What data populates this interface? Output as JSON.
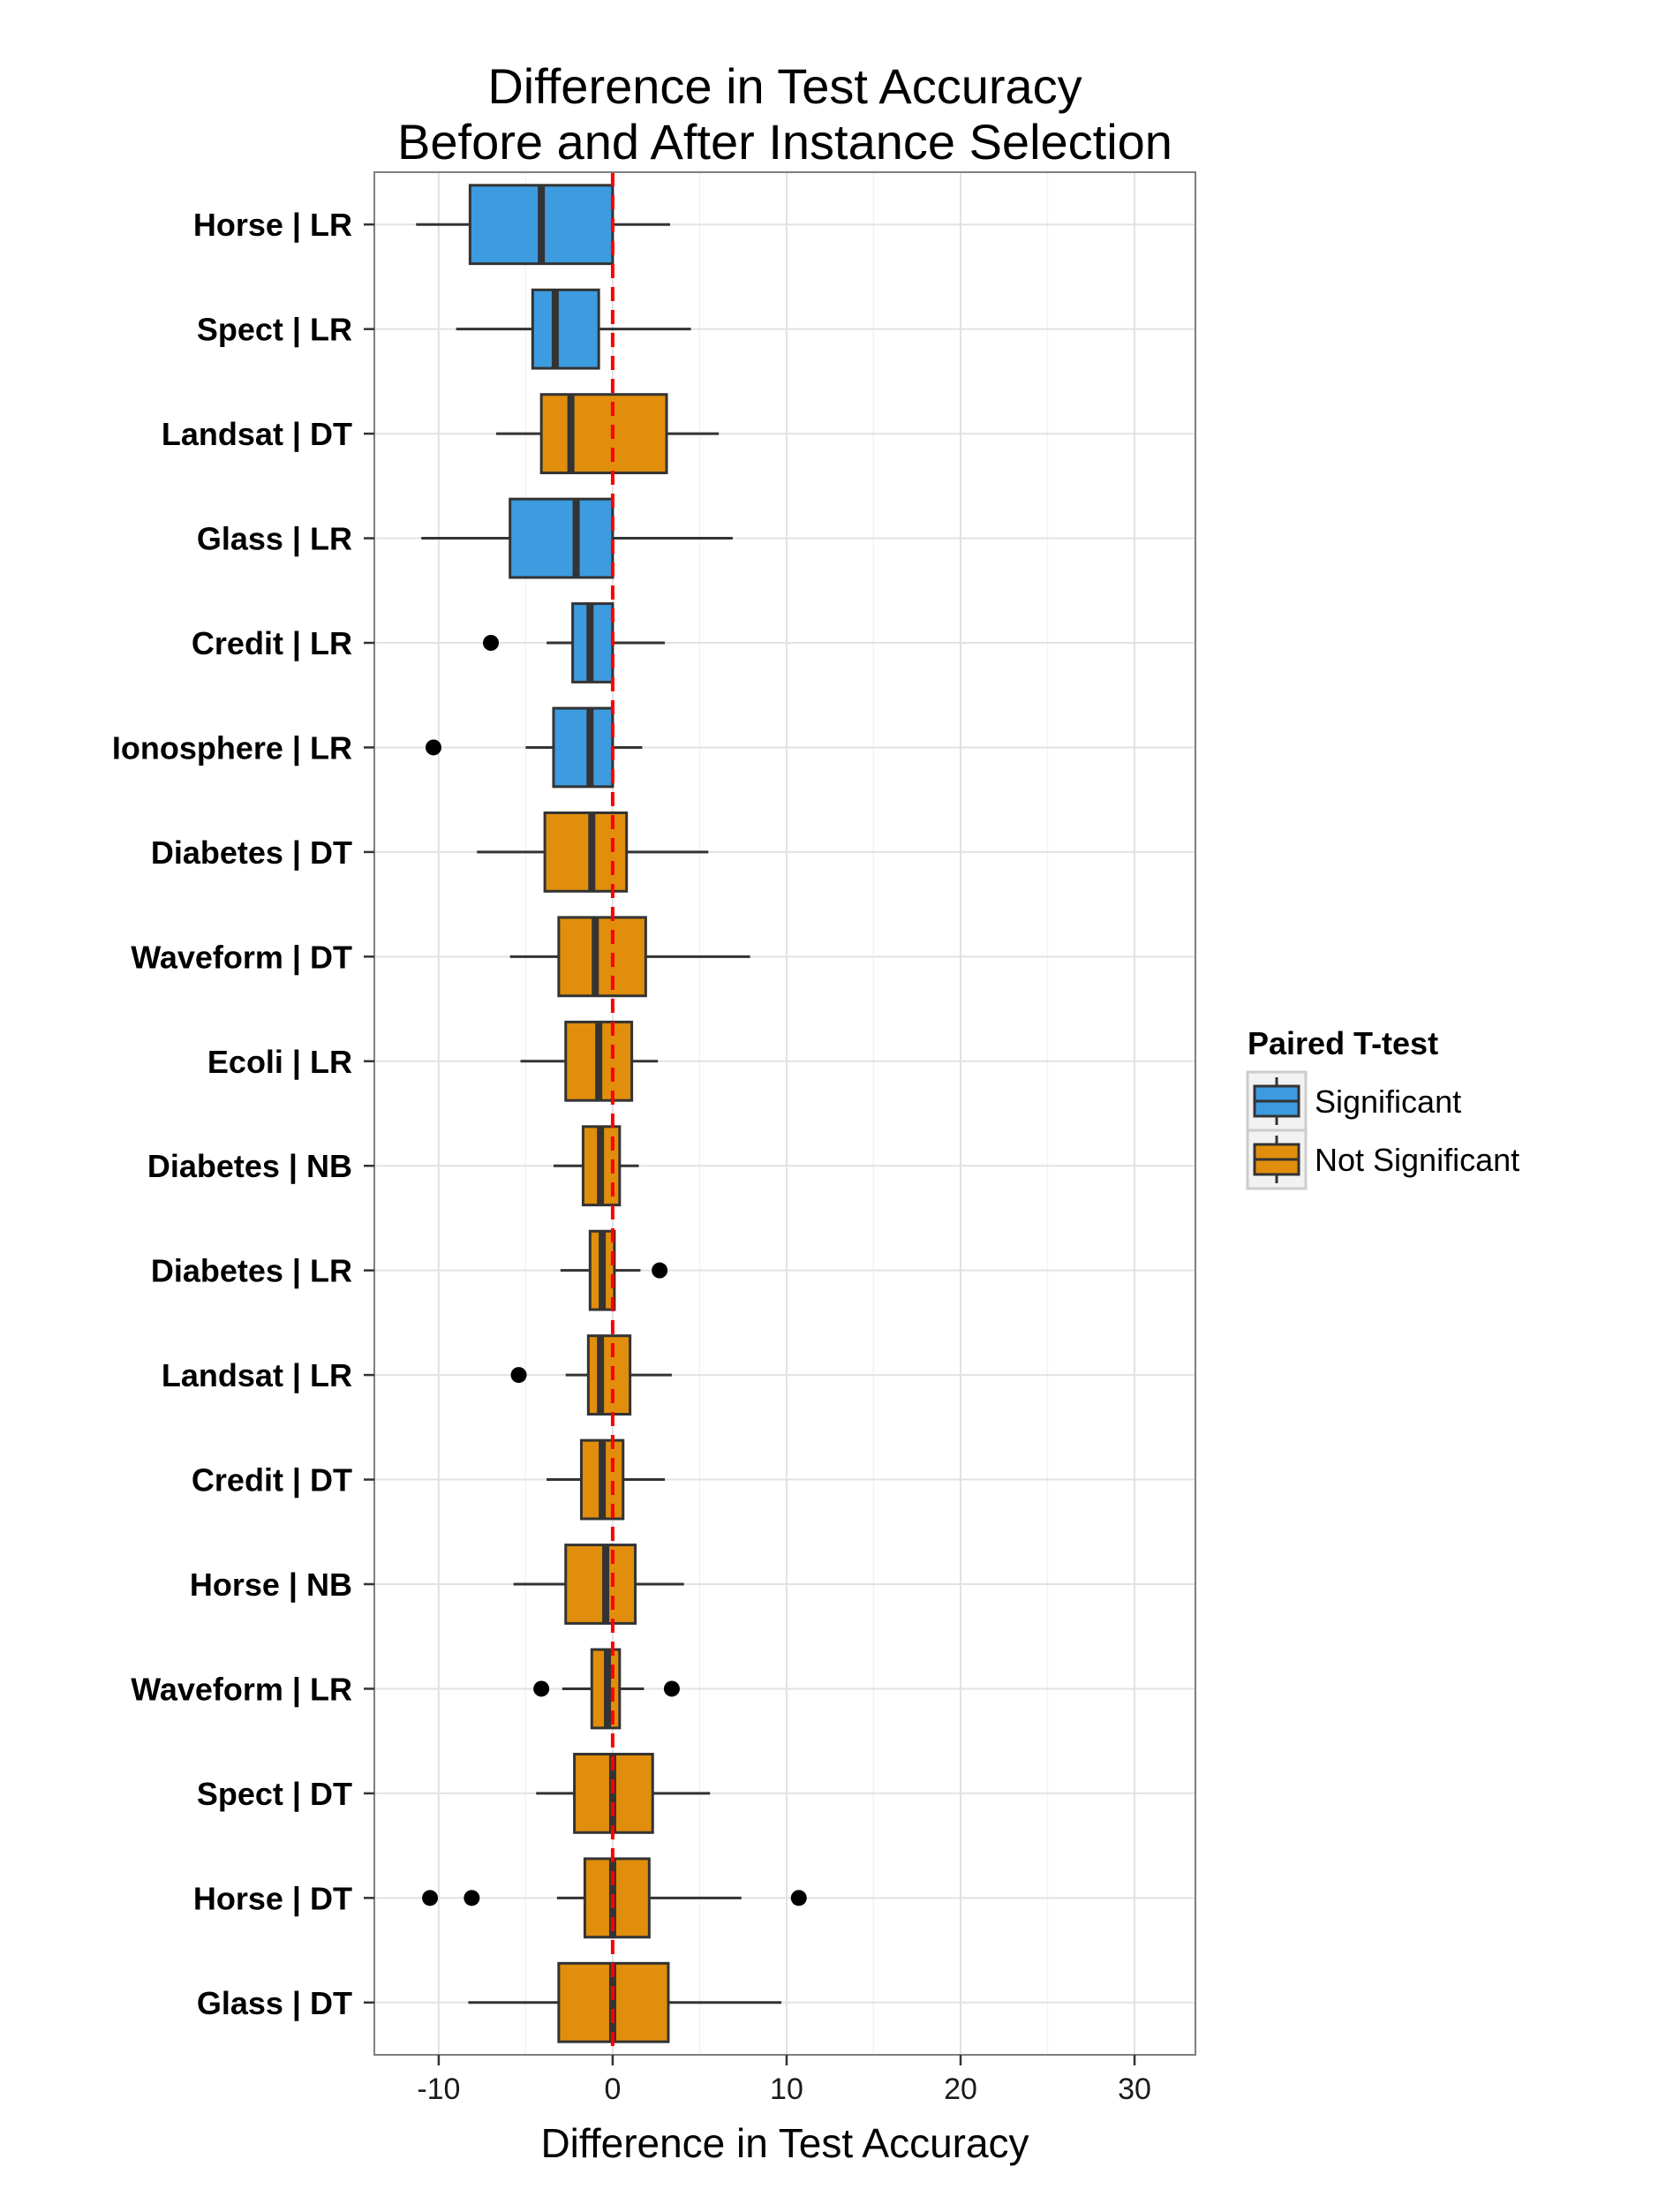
{
  "chart_data": {
    "type": "boxplot",
    "orientation": "horizontal",
    "title": [
      "Difference in Test Accuracy",
      "Before and After Instance Selection"
    ],
    "xlabel": "Difference in Test Accuracy",
    "ylabel": "",
    "xlim": [
      -13.7,
      33.5
    ],
    "xticks": [
      -10,
      0,
      10,
      20,
      30
    ],
    "grid": true,
    "reference_line": {
      "x": 0,
      "color": "#ff0000",
      "style": "dashed"
    },
    "legend": {
      "title": "Paired T-test",
      "placement": "right",
      "entries": [
        {
          "label": "Significant",
          "color": "#3d9be0"
        },
        {
          "label": "Not Significant",
          "color": "#e08e0b"
        }
      ]
    },
    "categories": [
      "Horse | LR",
      "Spect | LR",
      "Landsat | DT",
      "Glass | LR",
      "Credit | LR",
      "Ionosphere | LR",
      "Diabetes | DT",
      "Waveform | DT",
      "Ecoli | LR",
      "Diabetes | NB",
      "Diabetes | LR",
      "Landsat | LR",
      "Credit | DT",
      "Horse | NB",
      "Waveform | LR",
      "Spect | DT",
      "Horse | DT",
      "Glass | DT"
    ],
    "boxes": [
      {
        "label": "Horse | LR",
        "group": "Significant",
        "whisker_low": -11.3,
        "q1": -8.2,
        "median": -4.1,
        "q3": 0.0,
        "whisker_high": 3.3,
        "outliers": []
      },
      {
        "label": "Spect | LR",
        "group": "Significant",
        "whisker_low": -9.0,
        "q1": -4.6,
        "median": -3.3,
        "q3": -0.8,
        "whisker_high": 4.5,
        "outliers": []
      },
      {
        "label": "Landsat | DT",
        "group": "Not Significant",
        "whisker_low": -6.7,
        "q1": -4.1,
        "median": -2.4,
        "q3": 3.1,
        "whisker_high": 6.1,
        "outliers": []
      },
      {
        "label": "Glass | LR",
        "group": "Significant",
        "whisker_low": -11.0,
        "q1": -5.9,
        "median": -2.1,
        "q3": 0.0,
        "whisker_high": 6.9,
        "outliers": []
      },
      {
        "label": "Credit | LR",
        "group": "Significant",
        "whisker_low": -3.8,
        "q1": -2.3,
        "median": -1.3,
        "q3": 0.0,
        "whisker_high": 3.0,
        "outliers": [
          -7.0
        ]
      },
      {
        "label": "Ionosphere | LR",
        "group": "Significant",
        "whisker_low": -5.0,
        "q1": -3.4,
        "median": -1.3,
        "q3": 0.0,
        "whisker_high": 1.7,
        "outliers": [
          -10.3
        ]
      },
      {
        "label": "Diabetes | DT",
        "group": "Not Significant",
        "whisker_low": -7.8,
        "q1": -3.9,
        "median": -1.2,
        "q3": 0.8,
        "whisker_high": 5.5,
        "outliers": []
      },
      {
        "label": "Waveform | DT",
        "group": "Not Significant",
        "whisker_low": -5.9,
        "q1": -3.1,
        "median": -1.0,
        "q3": 1.9,
        "whisker_high": 7.9,
        "outliers": []
      },
      {
        "label": "Ecoli | LR",
        "group": "Not Significant",
        "whisker_low": -5.3,
        "q1": -2.7,
        "median": -0.8,
        "q3": 1.1,
        "whisker_high": 2.6,
        "outliers": []
      },
      {
        "label": "Diabetes | NB",
        "group": "Not Significant",
        "whisker_low": -3.4,
        "q1": -1.7,
        "median": -0.7,
        "q3": 0.4,
        "whisker_high": 1.5,
        "outliers": []
      },
      {
        "label": "Diabetes | LR",
        "group": "Not Significant",
        "whisker_low": -3.0,
        "q1": -1.3,
        "median": -0.6,
        "q3": 0.1,
        "whisker_high": 1.6,
        "outliers": [
          2.7
        ]
      },
      {
        "label": "Landsat | LR",
        "group": "Not Significant",
        "whisker_low": -2.7,
        "q1": -1.4,
        "median": -0.7,
        "q3": 1.0,
        "whisker_high": 3.4,
        "outliers": [
          -5.4
        ]
      },
      {
        "label": "Credit | DT",
        "group": "Not Significant",
        "whisker_low": -3.8,
        "q1": -1.8,
        "median": -0.6,
        "q3": 0.6,
        "whisker_high": 3.0,
        "outliers": []
      },
      {
        "label": "Horse | NB",
        "group": "Not Significant",
        "whisker_low": -5.7,
        "q1": -2.7,
        "median": -0.4,
        "q3": 1.3,
        "whisker_high": 4.1,
        "outliers": []
      },
      {
        "label": "Waveform | LR",
        "group": "Not Significant",
        "whisker_low": -2.9,
        "q1": -1.2,
        "median": -0.3,
        "q3": 0.4,
        "whisker_high": 1.8,
        "outliers": [
          -4.1,
          3.4
        ]
      },
      {
        "label": "Spect | DT",
        "group": "Not Significant",
        "whisker_low": -4.4,
        "q1": -2.2,
        "median": 0.0,
        "q3": 2.3,
        "whisker_high": 5.6,
        "outliers": []
      },
      {
        "label": "Horse | DT",
        "group": "Not Significant",
        "whisker_low": -3.2,
        "q1": -1.6,
        "median": 0.0,
        "q3": 2.1,
        "whisker_high": 7.4,
        "outliers": [
          -10.5,
          -8.1,
          10.7
        ]
      },
      {
        "label": "Glass | DT",
        "group": "Not Significant",
        "whisker_low": -8.3,
        "q1": -3.1,
        "median": 0.0,
        "q3": 3.2,
        "whisker_high": 9.7,
        "outliers": []
      }
    ]
  }
}
